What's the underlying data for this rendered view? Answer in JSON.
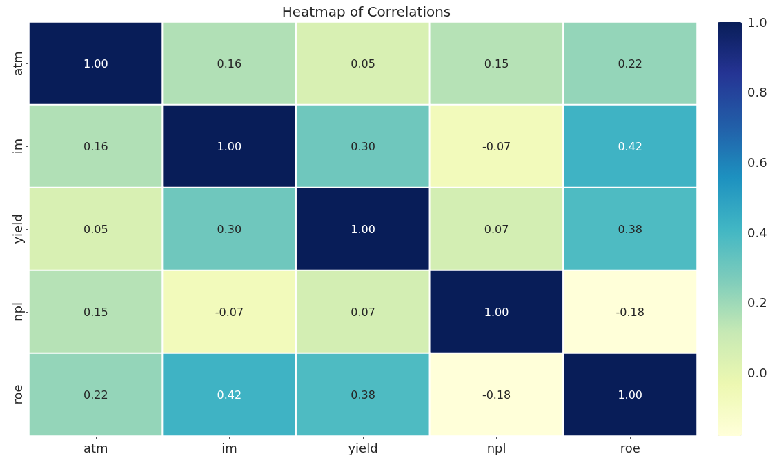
{
  "chart_data": {
    "type": "heatmap",
    "title": "Heatmap of Correlations",
    "categories": [
      "atm",
      "im",
      "yield",
      "npl",
      "roe"
    ],
    "y_categories": [
      "atm",
      "im",
      "yield",
      "npl",
      "roe"
    ],
    "cells": [
      [
        1.0,
        0.16,
        0.05,
        0.15,
        0.22
      ],
      [
        0.16,
        1.0,
        0.3,
        -0.07,
        0.42
      ],
      [
        0.05,
        0.3,
        1.0,
        0.07,
        0.38
      ],
      [
        0.15,
        -0.07,
        0.07,
        1.0,
        -0.18
      ],
      [
        0.22,
        0.42,
        0.38,
        -0.18,
        1.0
      ]
    ],
    "cell_labels": [
      [
        "1.00",
        "0.16",
        "0.05",
        "0.15",
        "0.22"
      ],
      [
        "0.16",
        "1.00",
        "0.30",
        "-0.07",
        "0.42"
      ],
      [
        "0.05",
        "0.30",
        "1.00",
        "0.07",
        "0.38"
      ],
      [
        "0.15",
        "-0.07",
        "0.07",
        "1.00",
        "-0.18"
      ],
      [
        "0.22",
        "0.42",
        "0.38",
        "-0.18",
        "1.00"
      ]
    ],
    "clim": [
      -0.18,
      1.0
    ],
    "cticks": [
      {
        "value": 0,
        "label": "0.0"
      },
      {
        "value": 0.2,
        "label": "0.2"
      },
      {
        "value": 0.4,
        "label": "0.4"
      },
      {
        "value": 0.6,
        "label": "0.6"
      },
      {
        "value": 0.8,
        "label": "0.8"
      },
      {
        "value": 1.0,
        "label": "1.0"
      }
    ]
  }
}
